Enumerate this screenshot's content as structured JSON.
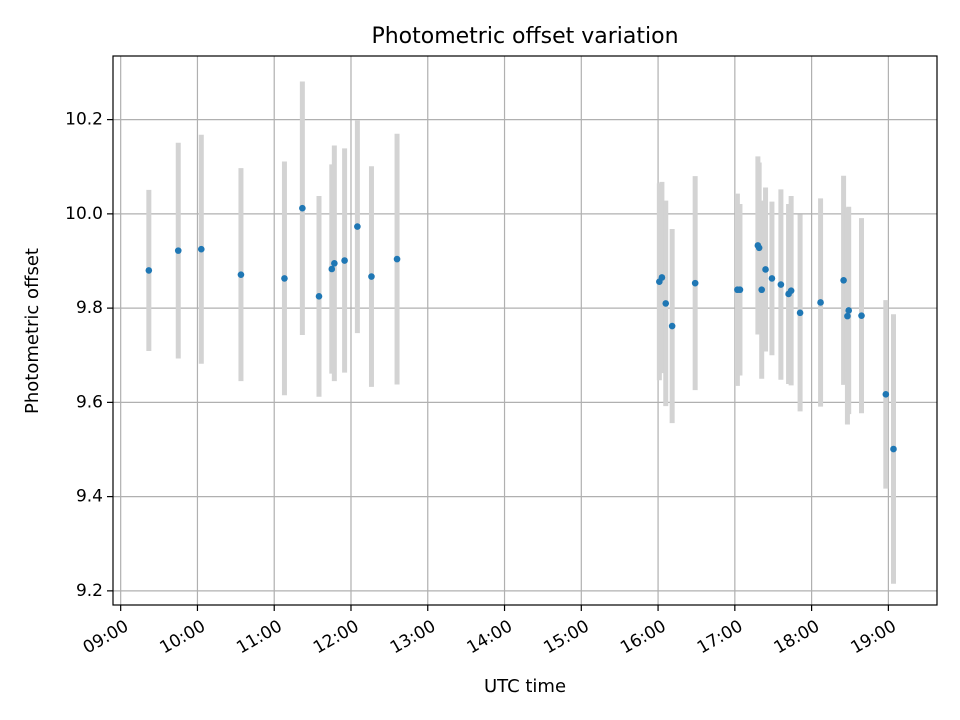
{
  "chart_data": {
    "type": "scatter",
    "title": "Photometric offset variation",
    "xlabel": "UTC time",
    "ylabel": "Photometric offset",
    "xlim": [
      "08:54",
      "19:38"
    ],
    "ylim": [
      9.17,
      10.335
    ],
    "grid": true,
    "x_ticks": [
      "09:00",
      "10:00",
      "11:00",
      "12:00",
      "13:00",
      "14:00",
      "15:00",
      "16:00",
      "17:00",
      "18:00",
      "19:00"
    ],
    "y_ticks": [
      "9.2",
      "9.4",
      "9.6",
      "9.8",
      "10.0",
      "10.2"
    ],
    "point_color": "#1f77b4",
    "errorbar_color": "#d3d3d3",
    "series": [
      {
        "points": [
          {
            "x": "09:22",
            "y": 9.88,
            "err": 0.171
          },
          {
            "x": "09:45",
            "y": 9.922,
            "err": 0.229
          },
          {
            "x": "10:03",
            "y": 9.925,
            "err": 0.243
          },
          {
            "x": "10:34",
            "y": 9.871,
            "err": 0.226
          },
          {
            "x": "11:08",
            "y": 9.863,
            "err": 0.248
          },
          {
            "x": "11:22",
            "y": 10.012,
            "err": 0.269
          },
          {
            "x": "11:35",
            "y": 9.825,
            "err": 0.213
          },
          {
            "x": "11:45",
            "y": 9.883,
            "err": 0.222
          },
          {
            "x": "11:47",
            "y": 9.895,
            "err": 0.25
          },
          {
            "x": "11:55",
            "y": 9.901,
            "err": 0.238
          },
          {
            "x": "12:05",
            "y": 9.973,
            "err": 0.226
          },
          {
            "x": "12:16",
            "y": 9.867,
            "err": 0.234
          },
          {
            "x": "12:36",
            "y": 9.904,
            "err": 0.266
          },
          {
            "x": "16:01",
            "y": 9.856,
            "err": 0.209
          },
          {
            "x": "16:03",
            "y": 9.865,
            "err": 0.203
          },
          {
            "x": "16:06",
            "y": 9.81,
            "err": 0.218
          },
          {
            "x": "16:11",
            "y": 9.762,
            "err": 0.206
          },
          {
            "x": "16:29",
            "y": 9.853,
            "err": 0.227
          },
          {
            "x": "17:02",
            "y": 9.839,
            "err": 0.204
          },
          {
            "x": "17:04",
            "y": 9.839,
            "err": 0.182
          },
          {
            "x": "17:18",
            "y": 9.933,
            "err": 0.189
          },
          {
            "x": "17:19",
            "y": 9.928,
            "err": 0.181
          },
          {
            "x": "17:21",
            "y": 9.839,
            "err": 0.189
          },
          {
            "x": "17:24",
            "y": 9.882,
            "err": 0.174
          },
          {
            "x": "17:29",
            "y": 9.863,
            "err": 0.163
          },
          {
            "x": "17:36",
            "y": 9.85,
            "err": 0.202
          },
          {
            "x": "17:42",
            "y": 9.83,
            "err": 0.191
          },
          {
            "x": "17:44",
            "y": 9.837,
            "err": 0.201
          },
          {
            "x": "17:51",
            "y": 9.79,
            "err": 0.209
          },
          {
            "x": "18:07",
            "y": 9.812,
            "err": 0.221
          },
          {
            "x": "18:25",
            "y": 9.859,
            "err": 0.222
          },
          {
            "x": "18:28",
            "y": 9.783,
            "err": 0.23
          },
          {
            "x": "18:29",
            "y": 9.795,
            "err": 0.22
          },
          {
            "x": "18:39",
            "y": 9.784,
            "err": 0.207
          },
          {
            "x": "18:58",
            "y": 9.617,
            "err": 0.2
          },
          {
            "x": "19:04",
            "y": 9.501,
            "err": 0.286
          }
        ]
      }
    ]
  }
}
